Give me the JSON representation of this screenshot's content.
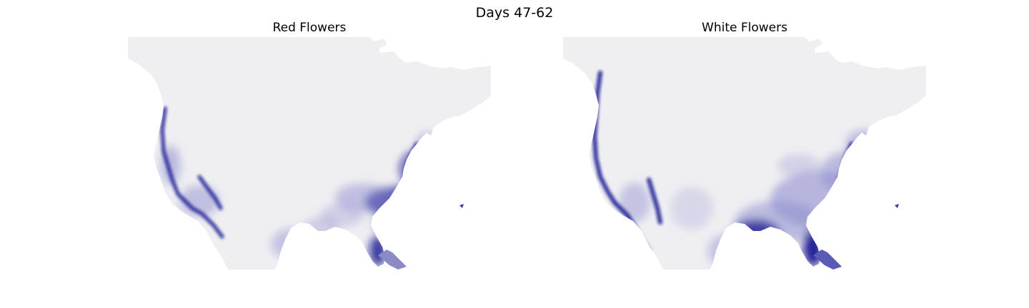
{
  "figure": {
    "suptitle": "Days 47-62"
  },
  "panels": [
    {
      "title": "Red Flowers",
      "colormap": {
        "low": "#efeff2",
        "mid": "#8f8fd0",
        "high": "#0d0d8f"
      },
      "pattern": "red"
    },
    {
      "title": "White Flowers",
      "colormap": {
        "low": "#efeff2",
        "mid": "#8f8fd0",
        "high": "#0d0d8f"
      },
      "pattern": "white"
    }
  ]
}
